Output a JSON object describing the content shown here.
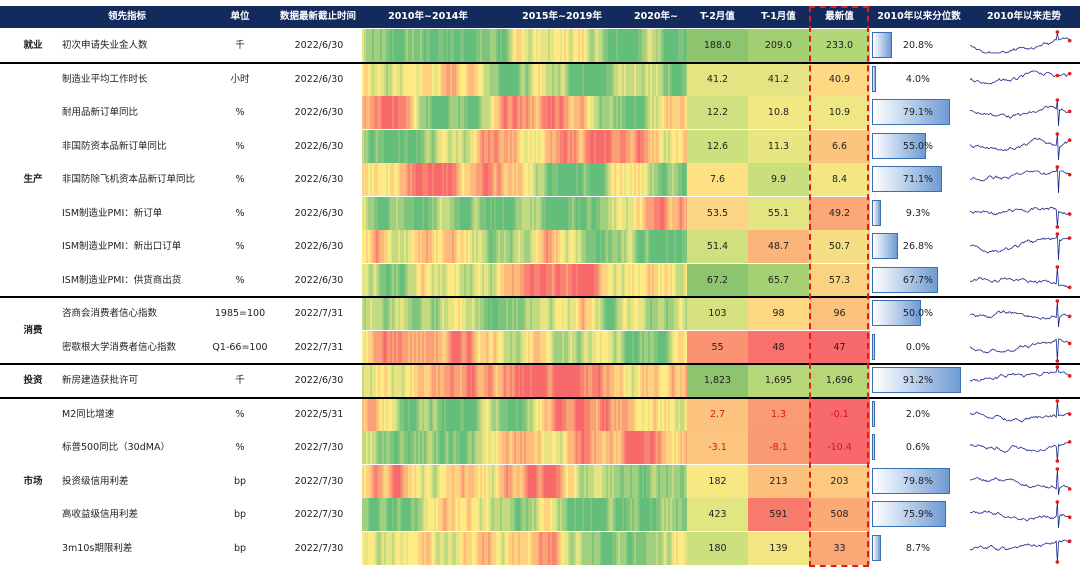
{
  "header": {
    "indicator": "领先指标",
    "unit": "单位",
    "date": "数据最新截止时间",
    "p1": "2010年~2014年",
    "p2": "2015年~2019年",
    "p3": "2020年~",
    "t2": "T-2月值",
    "t1": "T-1月值",
    "latest": "最新值",
    "pct": "2010年以来分位数",
    "trend": "2010年以来走势"
  },
  "categories": [
    {
      "label": "就业",
      "rows": [
        0
      ]
    },
    {
      "label": "生产",
      "rows": [
        1,
        2,
        3,
        4,
        5,
        6,
        7
      ]
    },
    {
      "label": "消费",
      "rows": [
        8,
        9
      ]
    },
    {
      "label": "投资",
      "rows": [
        10
      ]
    },
    {
      "label": "市场",
      "rows": [
        11,
        12,
        13,
        14,
        15
      ]
    }
  ],
  "rows": [
    {
      "name": "初次申请失业金人数",
      "unit": "千",
      "date": "2022/6/30",
      "t2": "188.0",
      "t1": "209.0",
      "latest": "233.0",
      "pct": "20.8%",
      "pct_value": 0.208,
      "t2_color": "#8cc56e",
      "t1_color": "#a2cf72",
      "lat_color": "#b3d676",
      "spike": "up"
    },
    {
      "name": "制造业平均工作时长",
      "unit": "小时",
      "date": "2022/6/30",
      "t2": "41.2",
      "t1": "41.2",
      "latest": "40.9",
      "pct": "4.0%",
      "pct_value": 0.04,
      "t2_color": "#e4e582",
      "t1_color": "#e4e582",
      "lat_color": "#fdd984",
      "spike": "flat"
    },
    {
      "name": "耐用品新订单同比",
      "unit": "%",
      "date": "2022/6/30",
      "t2": "12.2",
      "t1": "10.8",
      "latest": "10.9",
      "pct": "79.1%",
      "pct_value": 0.791,
      "t2_color": "#cfe07e",
      "t1_color": "#f1e783",
      "lat_color": "#eee783",
      "spike": "updown"
    },
    {
      "name": "非国防资本品新订单同比",
      "unit": "%",
      "date": "2022/6/30",
      "t2": "12.6",
      "t1": "11.3",
      "latest": "6.6",
      "pct": "55.0%",
      "pct_value": 0.55,
      "t2_color": "#cde07e",
      "t1_color": "#e8e682",
      "lat_color": "#fcc57f",
      "spike": "updown"
    },
    {
      "name": "非国防除飞机资本品新订单同比",
      "unit": "%",
      "date": "2022/6/30",
      "t2": "7.6",
      "t1": "9.9",
      "latest": "8.4",
      "pct": "71.1%",
      "pct_value": 0.711,
      "t2_color": "#fde183",
      "t1_color": "#c9de7d",
      "lat_color": "#f4e683",
      "spike": "updown"
    },
    {
      "name": "ISM制造业PMI：新订单",
      "unit": "%",
      "date": "2022/6/30",
      "t2": "53.5",
      "t1": "55.1",
      "latest": "49.2",
      "pct": "9.3%",
      "pct_value": 0.093,
      "t2_color": "#fbd583",
      "t1_color": "#e3e582",
      "lat_color": "#fba777",
      "spike": "down"
    },
    {
      "name": "ISM制造业PMI：新出口订单",
      "unit": "%",
      "date": "2022/6/30",
      "t2": "51.4",
      "t1": "48.7",
      "latest": "50.7",
      "pct": "26.8%",
      "pct_value": 0.268,
      "t2_color": "#cfe07e",
      "t1_color": "#fbb57b",
      "lat_color": "#f5dd83",
      "spike": "updown"
    },
    {
      "name": "ISM制造业PMI：供货商出货",
      "unit": "%",
      "date": "2022/6/30",
      "t2": "67.2",
      "t1": "65.7",
      "latest": "57.3",
      "pct": "67.7%",
      "pct_value": 0.677,
      "t2_color": "#8dc56e",
      "t1_color": "#a5d073",
      "lat_color": "#fbd27f",
      "spike": "up"
    },
    {
      "name": "咨商会消费者信心指数",
      "unit": "1985=100",
      "date": "2022/7/31",
      "t2": "103",
      "t1": "98",
      "latest": "96",
      "pct": "50.0%",
      "pct_value": 0.5,
      "t2_color": "#d6e27f",
      "t1_color": "#fed881",
      "lat_color": "#fbc37e",
      "spike": "updown"
    },
    {
      "name": "密歇根大学消费者信心指数",
      "unit": "Q1-66=100",
      "date": "2022/7/31",
      "t2": "55",
      "t1": "48",
      "latest": "47",
      "pct": "0.0%",
      "pct_value": 0.0,
      "t2_color": "#fb9373",
      "t1_color": "#f8716b",
      "lat_color": "#f8696b",
      "spike": "down"
    },
    {
      "name": "新房建造获批许可",
      "unit": "千",
      "date": "2022/6/30",
      "t2": "1,823",
      "t1": "1,695",
      "latest": "1,696",
      "pct": "91.2%",
      "pct_value": 0.912,
      "t2_color": "#8cc56e",
      "t1_color": "#b6d777",
      "lat_color": "#b6d777",
      "spike": "up"
    },
    {
      "name": "M2同比增速",
      "unit": "%",
      "date": "2022/5/31",
      "t2": "2.7",
      "t1": "1.3",
      "latest": "-0.1",
      "pct": "2.0%",
      "pct_value": 0.02,
      "t2_color": "#fcc37e",
      "t1_color": "#f99b75",
      "lat_color": "#f8696b",
      "spike": "up"
    },
    {
      "name": "标普500同比（30dMA）",
      "unit": "%",
      "date": "2022/7/30",
      "t2": "-3.1",
      "t1": "-8.1",
      "latest": "-10.4",
      "pct": "0.6%",
      "pct_value": 0.006,
      "t2_color": "#fcc680",
      "t1_color": "#fa9a75",
      "lat_color": "#f8696b",
      "spike": "down"
    },
    {
      "name": "投资级信用利差",
      "unit": "bp",
      "date": "2022/7/30",
      "t2": "182",
      "t1": "213",
      "latest": "203",
      "pct": "79.8%",
      "pct_value": 0.798,
      "t2_color": "#f7e883",
      "t1_color": "#fcbf7c",
      "lat_color": "#fcc97f",
      "spike": "updown"
    },
    {
      "name": "高收益级信用利差",
      "unit": "bp",
      "date": "2022/7/30",
      "t2": "423",
      "t1": "591",
      "latest": "508",
      "pct": "75.9%",
      "pct_value": 0.759,
      "t2_color": "#e1e582",
      "t1_color": "#f87a6d",
      "lat_color": "#fbaa77",
      "spike": "updown"
    },
    {
      "name": "3m10s期限利差",
      "unit": "bp",
      "date": "2022/7/30",
      "t2": "180",
      "t1": "139",
      "latest": "33",
      "pct": "8.7%",
      "pct_value": 0.087,
      "t2_color": "#cde07e",
      "t1_color": "#f4e683",
      "lat_color": "#fba877",
      "spike": "down"
    }
  ]
}
